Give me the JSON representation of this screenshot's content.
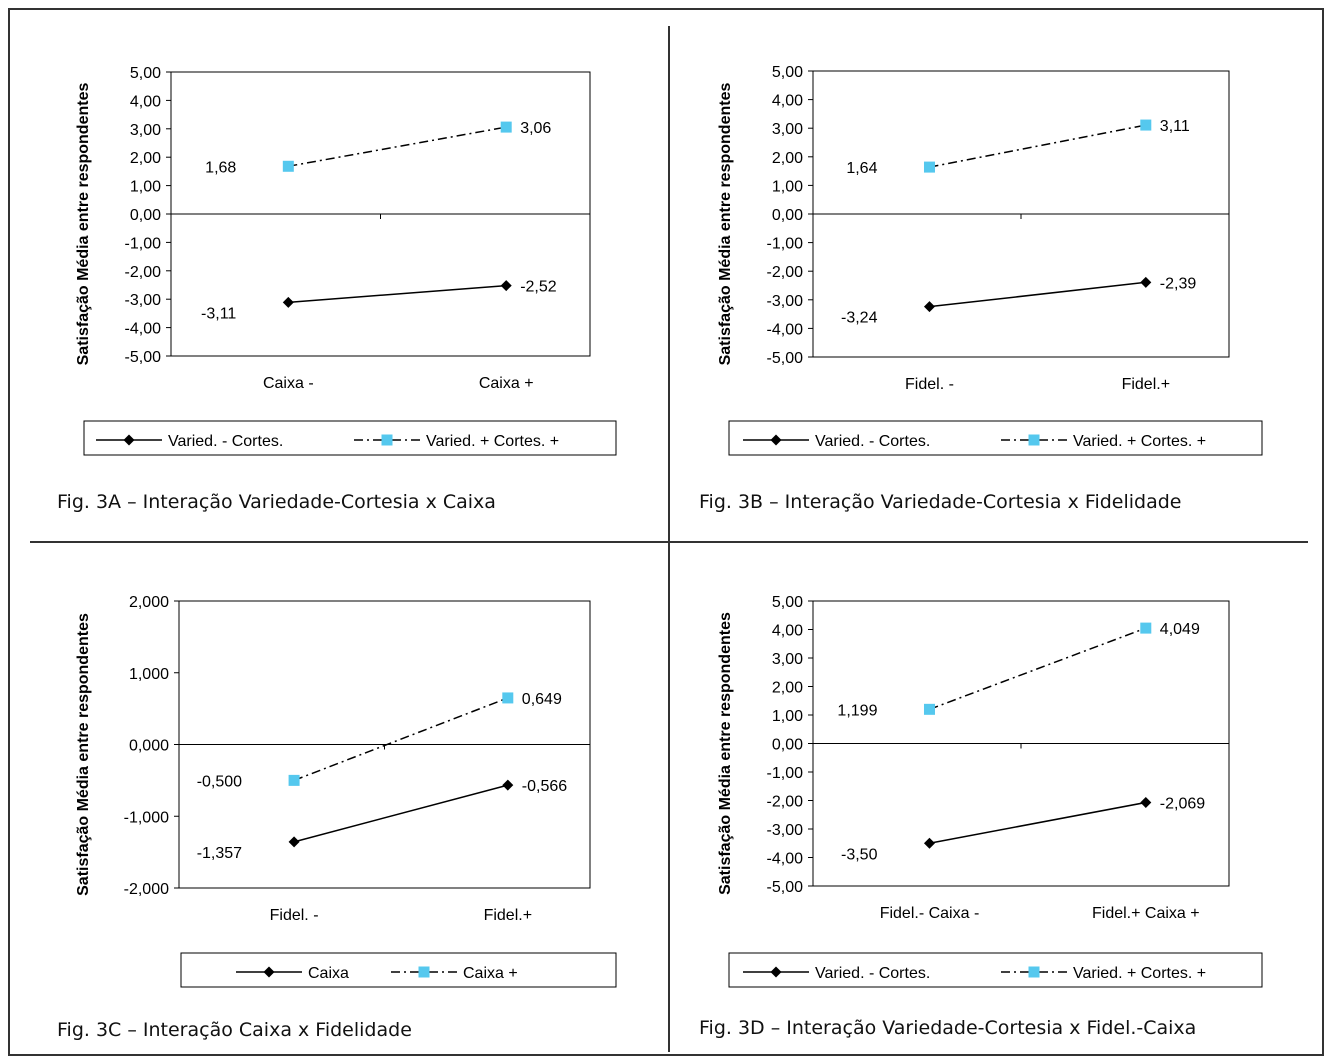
{
  "colors": {
    "series_a": "#000000",
    "series_b": "#55c8ee",
    "axis": "#000000",
    "frame": "#333333"
  },
  "chart_data": [
    {
      "type": "line",
      "caption": "Fig. 3A – Interação Variedade-Cortesia x Caixa",
      "ylabel": "Satisfação Média entre respondentes",
      "categories": [
        "Caixa -",
        "Caixa +"
      ],
      "ylim": [
        -5,
        5
      ],
      "yticks": [
        "5,00",
        "4,00",
        "3,00",
        "2,00",
        "1,00",
        "0,00",
        "-1,00",
        "-2,00",
        "-3,00",
        "-4,00",
        "-5,00"
      ],
      "yticks_values": [
        5,
        4,
        3,
        2,
        1,
        0,
        -1,
        -2,
        -3,
        -4,
        -5
      ],
      "series": [
        {
          "name": "Varied. - Cortes.",
          "values": [
            -3.11,
            -2.52
          ],
          "labels": [
            "-3,11",
            "-2,52"
          ],
          "marker": "diamond",
          "dash": "solid"
        },
        {
          "name": "Varied. + Cortes. +",
          "values": [
            1.68,
            3.06
          ],
          "labels": [
            "1,68",
            "3,06"
          ],
          "marker": "square",
          "dash": "dashdot"
        }
      ],
      "legend": "bottom"
    },
    {
      "type": "line",
      "caption": "Fig. 3B – Interação Variedade-Cortesia x Fidelidade",
      "ylabel": "Satisfação Média entre respondentes",
      "categories": [
        "Fidel. -",
        "Fidel.+"
      ],
      "ylim": [
        -5,
        5
      ],
      "yticks": [
        "5,00",
        "4,00",
        "3,00",
        "2,00",
        "1,00",
        "0,00",
        "-1,00",
        "-2,00",
        "-3,00",
        "-4,00",
        "-5,00"
      ],
      "yticks_values": [
        5,
        4,
        3,
        2,
        1,
        0,
        -1,
        -2,
        -3,
        -4,
        -5
      ],
      "series": [
        {
          "name": "Varied. - Cortes.",
          "values": [
            -3.24,
            -2.39
          ],
          "labels": [
            "-3,24",
            "-2,39"
          ],
          "marker": "diamond",
          "dash": "solid"
        },
        {
          "name": "Varied. + Cortes. +",
          "values": [
            1.64,
            3.11
          ],
          "labels": [
            "1,64",
            "3,11"
          ],
          "marker": "square",
          "dash": "dashdot"
        }
      ],
      "legend": "bottom"
    },
    {
      "type": "line",
      "caption": "Fig. 3C – Interação Caixa x Fidelidade",
      "ylabel": "Satisfação Média entre respondentes",
      "categories": [
        "Fidel. -",
        "Fidel.+"
      ],
      "ylim": [
        -2,
        2
      ],
      "yticks": [
        "2,000",
        "1,000",
        "0,000",
        "-1,000",
        "-2,000"
      ],
      "yticks_values": [
        2,
        1,
        0,
        -1,
        -2
      ],
      "series": [
        {
          "name": "Caixa",
          "values": [
            -1.357,
            -0.566
          ],
          "labels": [
            "-1,357",
            "-0,566"
          ],
          "marker": "diamond",
          "dash": "solid"
        },
        {
          "name": "Caixa +",
          "values": [
            -0.5,
            0.649
          ],
          "labels": [
            "-0,500",
            "0,649"
          ],
          "marker": "square",
          "dash": "dashdot"
        }
      ],
      "legend": "bottom"
    },
    {
      "type": "line",
      "caption": "Fig. 3D – Interação Variedade-Cortesia x Fidel.-Caixa",
      "ylabel": "Satisfação Média entre respondentes",
      "categories": [
        "Fidel.- Caixa -",
        "Fidel.+ Caixa +"
      ],
      "ylim": [
        -5,
        5
      ],
      "yticks": [
        "5,00",
        "4,00",
        "3,00",
        "2,00",
        "1,00",
        "0,00",
        "-1,00",
        "-2,00",
        "-3,00",
        "-4,00",
        "-5,00"
      ],
      "yticks_values": [
        5,
        4,
        3,
        2,
        1,
        0,
        -1,
        -2,
        -3,
        -4,
        -5
      ],
      "series": [
        {
          "name": "Varied. - Cortes.",
          "values": [
            -3.5,
            -2.069
          ],
          "labels": [
            "-3,50",
            "-2,069"
          ],
          "marker": "diamond",
          "dash": "solid"
        },
        {
          "name": "Varied. + Cortes. +",
          "values": [
            1.199,
            4.049
          ],
          "labels": [
            "1,199",
            "4,049"
          ],
          "marker": "square",
          "dash": "dashdot"
        }
      ],
      "legend": "bottom"
    }
  ]
}
